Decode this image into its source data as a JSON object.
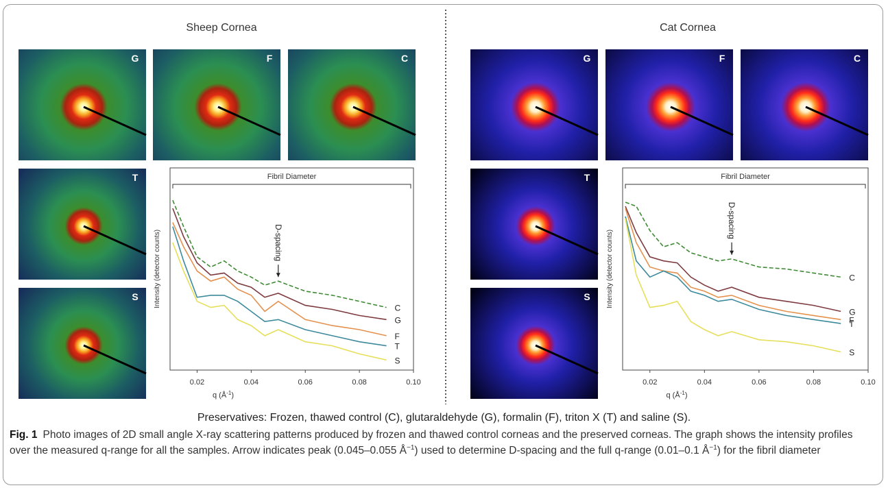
{
  "figure": {
    "panels": [
      {
        "title": "Sheep Cornea",
        "images": [
          "G",
          "F",
          "C",
          "T",
          "S"
        ]
      },
      {
        "title": "Cat Cornea",
        "images": [
          "G",
          "F",
          "C",
          "T",
          "S"
        ]
      }
    ],
    "preservatives": "Preservatives: Frozen, thawed control (C), glutaraldehyde (G), formalin (F), triton X (T) and saline (S).",
    "caption": {
      "label": "Fig. 1",
      "parts": [
        "Photo images of 2D small angle X-ray scattering patterns produced by frozen and thawed control corneas and the preserved corneas. The graph shows the intensity profiles over the measured q-range for all the samples. Arrow indicates peak (0.045–0.055 Å",
        "−1",
        ") used to determine D-spacing and the full q-range (0.01–0.1 Å",
        "−1",
        ") for the fibril diameter"
      ]
    }
  },
  "chart_data": [
    {
      "type": "line",
      "y_label": "Intensity (detector counts)",
      "x_label_parts": [
        "q (Å",
        "-1",
        ")"
      ],
      "xlim": [
        0.01,
        0.1
      ],
      "xticks": [
        0.02,
        0.04,
        0.06,
        0.08,
        {
          "value": 0.1,
          "label": "0.10"
        }
      ],
      "ylim": [
        0,
        100
      ],
      "bracket": {
        "text": "Fibril Diameter",
        "range": [
          0.01,
          0.1
        ]
      },
      "arrow": {
        "text": "D-spacing",
        "x": 0.05
      },
      "x": [
        0.011,
        0.015,
        0.02,
        0.025,
        0.03,
        0.035,
        0.04,
        0.045,
        0.05,
        0.06,
        0.07,
        0.08,
        0.09
      ],
      "series": [
        {
          "name": "C",
          "color": "#3f8a35",
          "dashed": true,
          "values": [
            84,
            71,
            56,
            51,
            54,
            49,
            46,
            42,
            44,
            39,
            37,
            34,
            31
          ]
        },
        {
          "name": "G",
          "color": "#7e3b3f",
          "values": [
            80,
            66,
            53,
            47,
            48,
            43,
            41,
            36,
            38,
            32,
            30,
            27,
            25
          ]
        },
        {
          "name": "F",
          "color": "#e4914e",
          "values": [
            73,
            61,
            49,
            44,
            46,
            40,
            37,
            29,
            34,
            25,
            22,
            20,
            17
          ]
        },
        {
          "name": "T",
          "color": "#3d8a9c",
          "values": [
            71,
            54,
            36,
            37,
            37,
            34,
            29,
            24,
            25,
            20,
            17,
            14,
            12
          ]
        },
        {
          "name": "S",
          "color": "#e6df5a",
          "values": [
            63,
            49,
            34,
            31,
            32,
            25,
            22,
            17,
            20,
            14,
            12,
            8,
            5
          ]
        }
      ]
    },
    {
      "type": "line",
      "y_label": "Intensity (detector counts)",
      "x_label_parts": [
        "q (Å",
        "-1",
        ")"
      ],
      "xlim": [
        0.01,
        0.1
      ],
      "xticks": [
        0.02,
        0.04,
        0.06,
        0.08,
        {
          "value": 0.1,
          "label": "0.10"
        }
      ],
      "ylim": [
        0,
        100
      ],
      "bracket": {
        "text": "Fibril Diameter",
        "range": [
          0.01,
          0.1
        ]
      },
      "arrow": {
        "text": "D-spacing",
        "x": 0.05
      },
      "x": [
        0.011,
        0.015,
        0.02,
        0.025,
        0.03,
        0.035,
        0.04,
        0.045,
        0.05,
        0.06,
        0.07,
        0.08,
        0.09
      ],
      "series": [
        {
          "name": "C",
          "color": "#3f8a35",
          "dashed": true,
          "values": [
            83,
            81,
            69,
            61,
            63,
            58,
            56,
            54,
            55,
            51,
            50,
            48,
            46
          ]
        },
        {
          "name": "G",
          "color": "#7e3b3f",
          "values": [
            81,
            68,
            56,
            54,
            53,
            46,
            42,
            39,
            41,
            36,
            34,
            32,
            29
          ]
        },
        {
          "name": "F",
          "color": "#e4914e",
          "values": [
            80,
            63,
            51,
            49,
            48,
            41,
            39,
            36,
            37,
            32,
            29,
            27,
            25
          ]
        },
        {
          "name": "T",
          "color": "#3d8a9c",
          "values": [
            76,
            54,
            46,
            49,
            46,
            39,
            37,
            34,
            35,
            30,
            27,
            25,
            23
          ]
        },
        {
          "name": "S",
          "color": "#e6df5a",
          "values": [
            75,
            47,
            31,
            32,
            34,
            24,
            20,
            17,
            19,
            15,
            14,
            12,
            9
          ]
        }
      ]
    }
  ]
}
